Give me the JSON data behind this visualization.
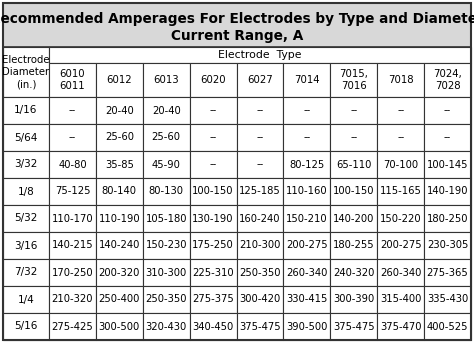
{
  "title_line1": "Recommended Amperages For Electrodes by Type and Diameter",
  "title_line2": "Current Range, A",
  "col_header_left": "Electrode\nDiameter\n(in.)",
  "col_header_type": "Electrode  Type",
  "electrode_types": [
    "6010\n6011",
    "6012",
    "6013",
    "6020",
    "6027",
    "7014",
    "7015,\n7016",
    "7018",
    "7024,\n7028"
  ],
  "rows": [
    [
      "1/16",
      "--",
      "20-40",
      "20-40",
      "--",
      "--",
      "--",
      "--",
      "--",
      "--"
    ],
    [
      "5/64",
      "--",
      "25-60",
      "25-60",
      "--",
      "--",
      "--",
      "--",
      "--",
      "--"
    ],
    [
      "3/32",
      "40-80",
      "35-85",
      "45-90",
      "--",
      "--",
      "80-125",
      "65-110",
      "70-100",
      "100-145"
    ],
    [
      "1/8",
      "75-125",
      "80-140",
      "80-130",
      "100-150",
      "125-185",
      "110-160",
      "100-150",
      "115-165",
      "140-190"
    ],
    [
      "5/32",
      "110-170",
      "110-190",
      "105-180",
      "130-190",
      "160-240",
      "150-210",
      "140-200",
      "150-220",
      "180-250"
    ],
    [
      "3/16",
      "140-215",
      "140-240",
      "150-230",
      "175-250",
      "210-300",
      "200-275",
      "180-255",
      "200-275",
      "230-305"
    ],
    [
      "7/32",
      "170-250",
      "200-320",
      "310-300",
      "225-310",
      "250-350",
      "260-340",
      "240-320",
      "260-340",
      "275-365"
    ],
    [
      "1/4",
      "210-320",
      "250-400",
      "250-350",
      "275-375",
      "300-420",
      "330-415",
      "300-390",
      "315-400",
      "335-430"
    ],
    [
      "5/16",
      "275-425",
      "300-500",
      "320-430",
      "340-450",
      "375-475",
      "390-500",
      "375-475",
      "375-470",
      "400-525"
    ]
  ],
  "bg_title": "#d8d8d8",
  "bg_header": "#ffffff",
  "bg_cell_odd": "#ffffff",
  "bg_cell_even": "#ffffff",
  "border_color": "#333333",
  "title_fontsize": 9.8,
  "header_fontsize": 7.8,
  "cell_fontsize": 7.2,
  "fig_w": 4.74,
  "fig_h": 3.43,
  "dpi": 100
}
